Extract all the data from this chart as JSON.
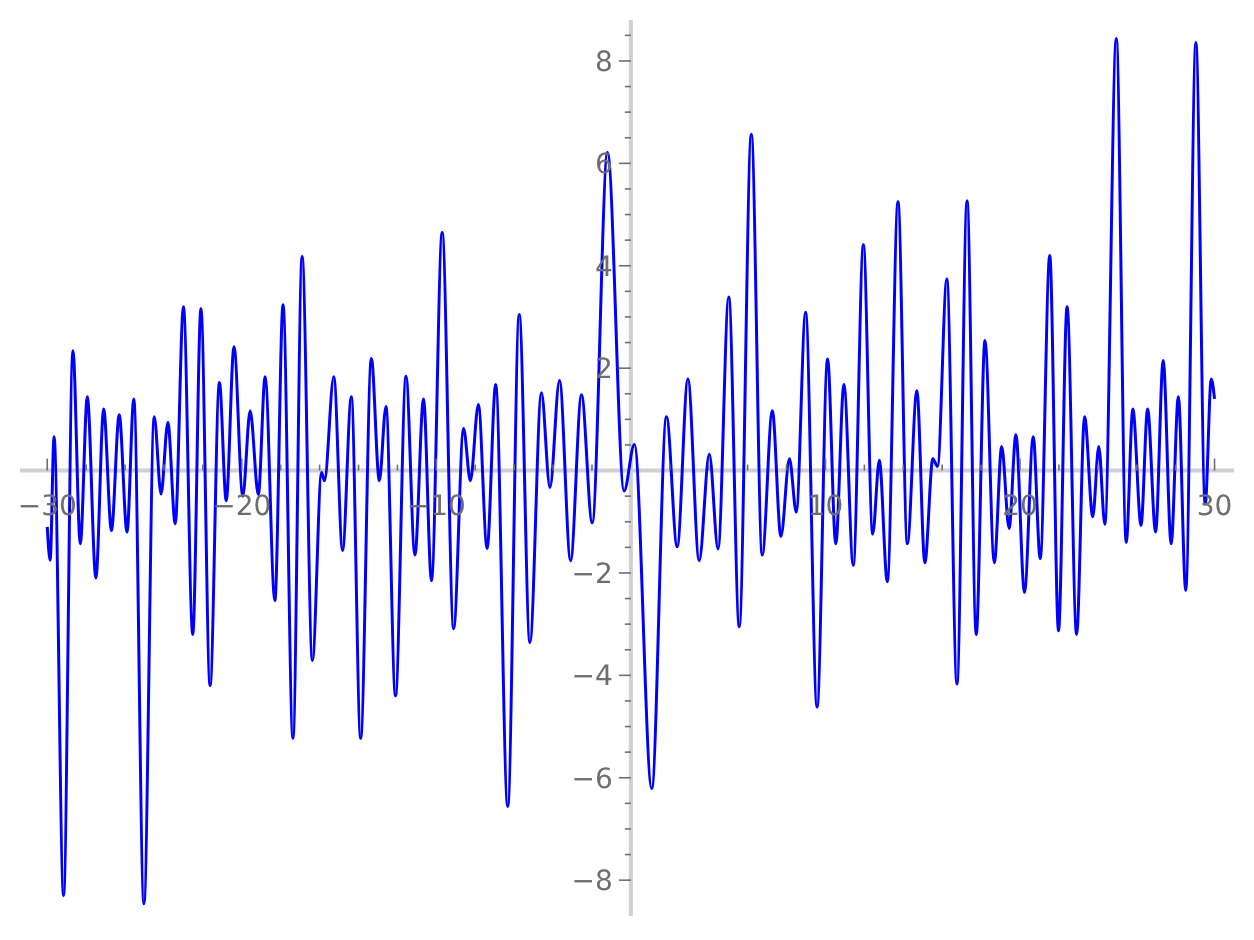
{
  "chart_data": {
    "type": "line",
    "xlim": [
      -31.4,
      31.0
    ],
    "ylim": [
      -8.7,
      8.8
    ],
    "xticks": [
      -30,
      {
        "value": -28,
        "label": null
      },
      {
        "value": -26,
        "label": null
      },
      {
        "value": -24,
        "label": null
      },
      {
        "value": -22,
        "label": null
      },
      -20,
      {
        "value": -18,
        "label": null
      },
      {
        "value": -16,
        "label": null
      },
      {
        "value": -14,
        "label": null
      },
      {
        "value": -12,
        "label": null
      },
      -10,
      {
        "value": -8,
        "label": null
      },
      {
        "value": -6,
        "label": null
      },
      {
        "value": -4,
        "label": null
      },
      {
        "value": -2,
        "label": null
      },
      {
        "value": 2,
        "label": null
      },
      {
        "value": 4,
        "label": null
      },
      {
        "value": 6,
        "label": null
      },
      {
        "value": 8,
        "label": null
      },
      10,
      {
        "value": 12,
        "label": null
      },
      {
        "value": 14,
        "label": null
      },
      {
        "value": 16,
        "label": null
      },
      {
        "value": 18,
        "label": null
      },
      20,
      {
        "value": 22,
        "label": null
      },
      {
        "value": 24,
        "label": null
      },
      {
        "value": 26,
        "label": null
      },
      {
        "value": 28,
        "label": null
      },
      30
    ],
    "yticks": [
      -8,
      {
        "value": -7.5,
        "label": null
      },
      {
        "value": -7,
        "label": null
      },
      {
        "value": -6.5,
        "label": null
      },
      -6,
      {
        "value": -5.5,
        "label": null
      },
      {
        "value": -5,
        "label": null
      },
      {
        "value": -4.5,
        "label": null
      },
      -4,
      {
        "value": -3.5,
        "label": null
      },
      {
        "value": -3,
        "label": null
      },
      {
        "value": -2.5,
        "label": null
      },
      -2,
      {
        "value": -1.5,
        "label": null
      },
      {
        "value": -1,
        "label": null
      },
      {
        "value": -0.5,
        "label": null
      },
      {
        "value": 0.5,
        "label": null
      },
      {
        "value": 1,
        "label": null
      },
      {
        "value": 1.5,
        "label": null
      },
      2,
      {
        "value": 2.5,
        "label": null
      },
      {
        "value": 3,
        "label": null
      },
      {
        "value": 3.5,
        "label": null
      },
      4,
      {
        "value": 4.5,
        "label": null
      },
      {
        "value": 5,
        "label": null
      },
      {
        "value": 5.5,
        "label": null
      },
      6,
      {
        "value": 6.5,
        "label": null
      },
      {
        "value": 7,
        "label": null
      },
      {
        "value": 7.5,
        "label": null
      },
      8,
      {
        "value": 8.5,
        "label": null
      }
    ],
    "grid": false,
    "marker": "none",
    "line_style": "solid",
    "series": [
      {
        "color": "#0000ff",
        "x": [
          -30,
          -29.85,
          -29.65,
          -29.16,
          -28.68,
          -28.3,
          -27.94,
          -27.5,
          -27.1,
          -26.7,
          -26.3,
          -25.9,
          -25.55,
          -25.03,
          -24.5,
          -24.15,
          -23.8,
          -23.42,
          -23.0,
          -22.52,
          -22.1,
          -21.63,
          -21.15,
          -20.8,
          -20.4,
          -19.95,
          -19.57,
          -19.15,
          -18.8,
          -18.3,
          -17.88,
          -17.37,
          -16.9,
          -16.37,
          -15.9,
          -15.75,
          -15.27,
          -14.82,
          -14.37,
          -13.89,
          -13.34,
          -12.93,
          -12.59,
          -12.1,
          -11.56,
          -11.1,
          -10.66,
          -10.25,
          -9.7,
          -9.11,
          -8.6,
          -8.25,
          -7.84,
          -7.39,
          -6.95,
          -6.33,
          -5.74,
          -5.19,
          -4.6,
          -4.16,
          -3.67,
          -3.1,
          -2.54,
          -1.99,
          -1.2,
          -0.35,
          0.18,
          1.07,
          1.83,
          2.38,
          2.93,
          3.51,
          4.03,
          4.48,
          5.03,
          5.57,
          6.19,
          6.75,
          7.27,
          7.71,
          8.15,
          8.5,
          8.98,
          9.57,
          10.11,
          10.53,
          10.95,
          11.43,
          11.95,
          12.43,
          12.77,
          13.18,
          13.73,
          14.21,
          14.7,
          15.11,
          15.52,
          15.76,
          16.24,
          16.76,
          17.28,
          17.75,
          18.2,
          18.68,
          19.06,
          19.44,
          19.79,
          20.23,
          20.68,
          21.04,
          21.53,
          21.98,
          22.42,
          22.91,
          23.32,
          23.74,
          24.05,
          24.36,
          24.95,
          25.46,
          25.8,
          26.22,
          26.56,
          26.97,
          27.36,
          27.77,
          28.14,
          28.52,
          29.04,
          29.52,
          29.83,
          30
        ],
        "values": [
          -1.1,
          -1.75,
          0.66,
          -8.3,
          2.34,
          -1.43,
          1.44,
          -2.1,
          1.2,
          -1.17,
          1.09,
          -1.2,
          1.4,
          -8.46,
          1.05,
          -0.46,
          0.94,
          -1.04,
          3.2,
          -3.2,
          3.16,
          -4.2,
          1.72,
          -0.59,
          2.42,
          -0.5,
          1.17,
          -0.47,
          1.83,
          -2.54,
          3.24,
          -5.23,
          4.18,
          -3.71,
          -0.04,
          -0.2,
          1.83,
          -1.56,
          1.44,
          -5.23,
          2.19,
          -0.2,
          1.25,
          -4.4,
          1.84,
          -1.65,
          1.4,
          -2.15,
          4.65,
          -3.09,
          0.82,
          -0.2,
          1.29,
          -1.52,
          1.68,
          -6.56,
          3.05,
          -3.36,
          1.52,
          -0.33,
          1.76,
          -1.76,
          1.48,
          -1.02,
          6.21,
          -0.4,
          0.51,
          -6.21,
          1.05,
          -1.49,
          1.79,
          -1.76,
          0.32,
          -1.53,
          3.39,
          -3.05,
          6.57,
          -1.65,
          1.17,
          -1.29,
          0.23,
          -0.81,
          3.09,
          -4.62,
          2.18,
          -1.43,
          1.68,
          -1.85,
          4.41,
          -1.24,
          0.2,
          -2.17,
          5.25,
          -1.43,
          1.56,
          -1.8,
          0.23,
          0.08,
          3.74,
          -4.17,
          5.27,
          -3.2,
          2.54,
          -1.8,
          0.47,
          -1.13,
          0.7,
          -2.38,
          0.66,
          -1.72,
          4.2,
          -3.13,
          3.2,
          -3.2,
          1.05,
          -0.9,
          0.47,
          -1.05,
          8.44,
          -1.4,
          1.2,
          -1.07,
          1.2,
          -1.2,
          2.15,
          -1.43,
          1.44,
          -2.34,
          8.36,
          -0.66,
          1.79,
          1.4
        ]
      }
    ]
  }
}
